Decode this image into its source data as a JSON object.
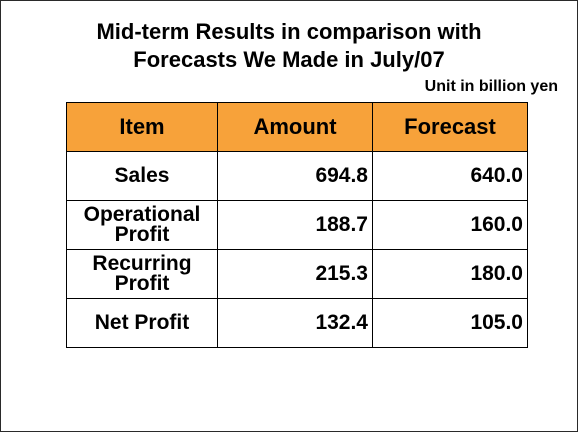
{
  "title": {
    "line1": "Mid-term Results in comparison with",
    "line2": "Forecasts We Made in July/07"
  },
  "unit": "Unit in billion yen",
  "table": {
    "headers": [
      "Item",
      "Amount",
      "Forecast"
    ],
    "header_color": "#f7a23a",
    "rows": [
      {
        "item": [
          "Sales"
        ],
        "amount": "694.8",
        "forecast": "640.0"
      },
      {
        "item": [
          "Operational",
          "Profit"
        ],
        "amount": "188.7",
        "forecast": "160.0"
      },
      {
        "item": [
          "Recurring",
          "Profit"
        ],
        "amount": "215.3",
        "forecast": "180.0"
      },
      {
        "item": [
          "Net Profit"
        ],
        "amount": "132.4",
        "forecast": "105.0"
      }
    ]
  }
}
